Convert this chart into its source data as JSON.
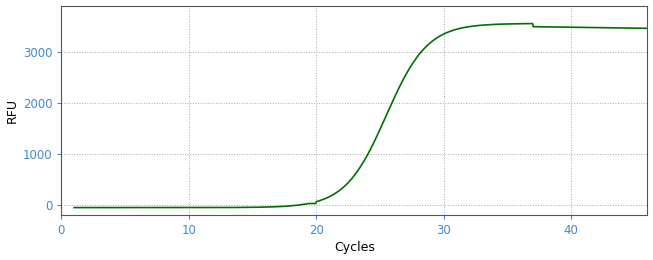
{
  "title": "",
  "xlabel": "Cycles",
  "ylabel": "RFU",
  "line_color": "#007000",
  "line_width": 1.2,
  "background_color": "#ffffff",
  "plot_bg_color": "#ffffff",
  "grid_color": "#aaaaaa",
  "grid_linestyle": ":",
  "xlim": [
    0,
    46
  ],
  "ylim": [
    -200,
    3900
  ],
  "xticks": [
    0,
    10,
    20,
    30,
    40
  ],
  "yticks": [
    0,
    1000,
    2000,
    3000
  ],
  "tick_color": "#4488cc",
  "x_start": 1,
  "x_end": 46,
  "num_points": 1000,
  "sigmoid_L": 3600,
  "sigmoid_k": 0.62,
  "sigmoid_x0": 25.5,
  "sigmoid_baseline": -50,
  "peak_x": 37,
  "peak_drop": 120,
  "peak_drop_k": 0.15
}
